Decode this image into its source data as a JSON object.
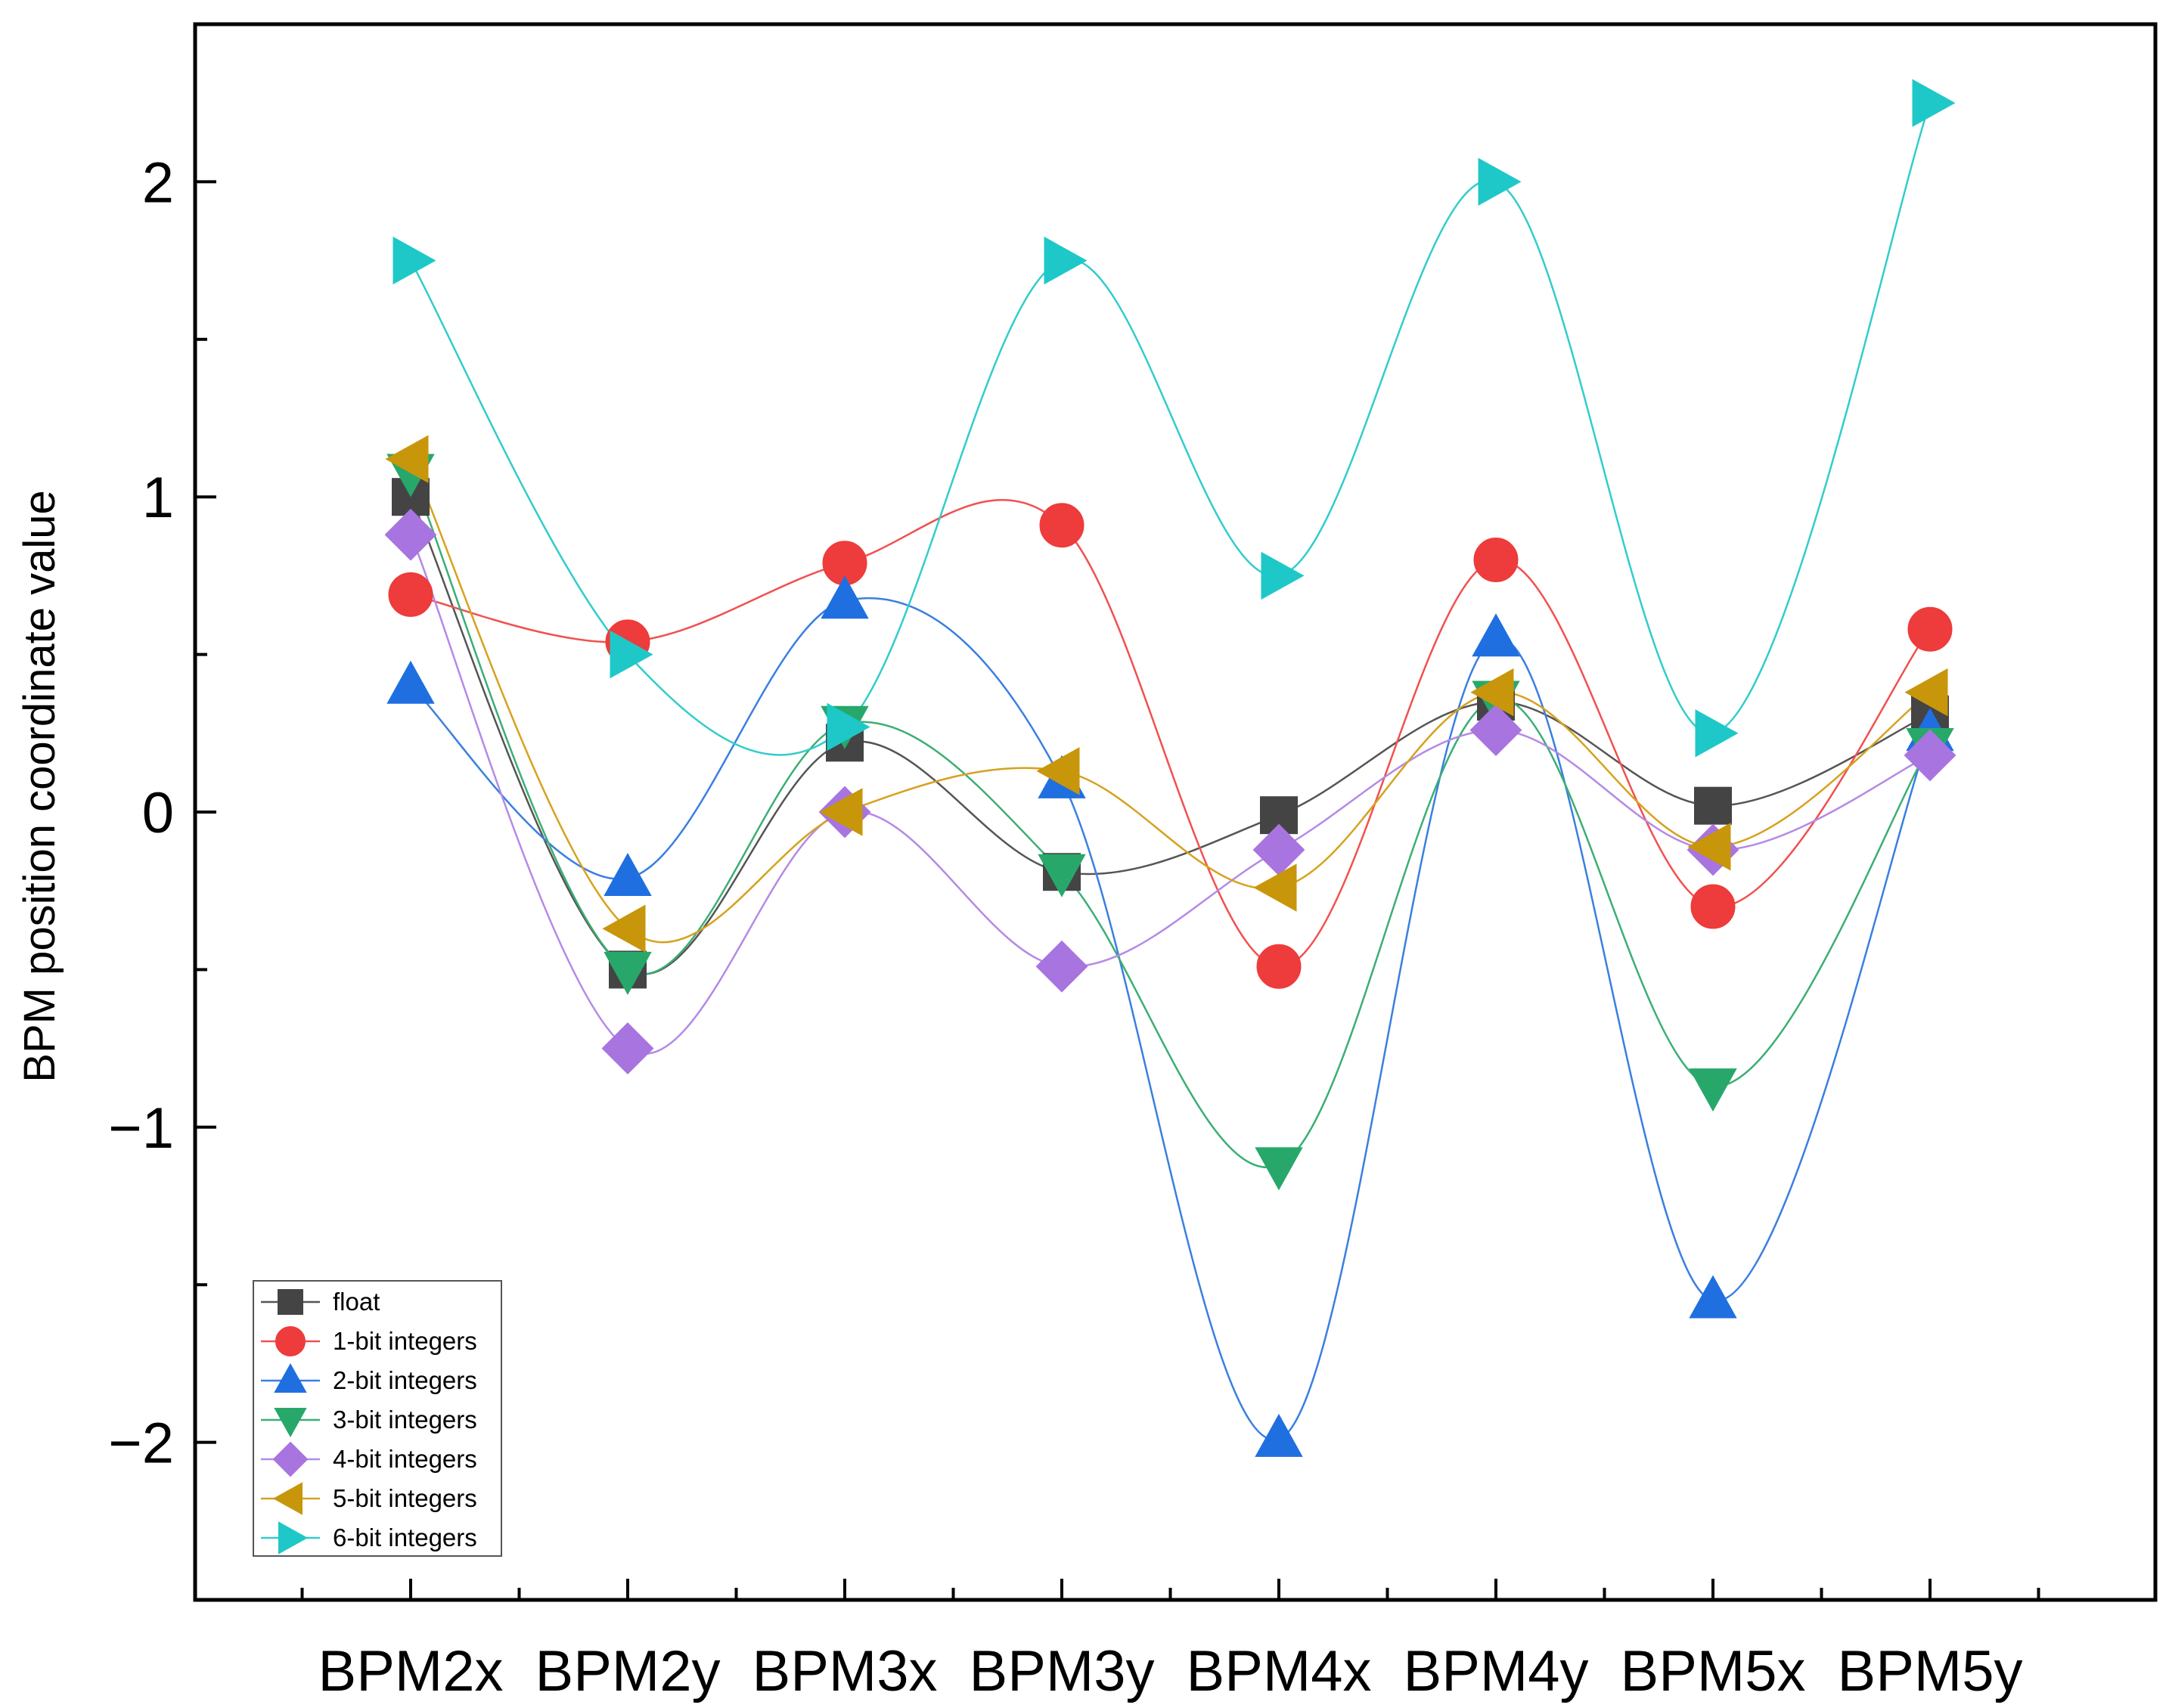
{
  "chart_data": {
    "type": "line",
    "title": "",
    "xlabel": "",
    "ylabel": "BPM position coordinate value",
    "categories": [
      "BPM2x",
      "BPM2y",
      "BPM3x",
      "BPM3y",
      "BPM4x",
      "BPM4y",
      "BPM5x",
      "BPM5y"
    ],
    "ylim": [
      -2.5,
      2.5
    ],
    "yticks": [
      -2,
      -1,
      0,
      1,
      2
    ],
    "ytick_labels": [
      "−2",
      "−1",
      "0",
      "1",
      "2"
    ],
    "smooth": true,
    "legend_position": "bottom-left",
    "series": [
      {
        "name": "float",
        "marker": "square",
        "color": "#444444",
        "line_color": "#555555",
        "values": [
          1.0,
          -0.5,
          0.22,
          -0.19,
          -0.01,
          0.35,
          0.02,
          0.31
        ]
      },
      {
        "name": "1-bit integers",
        "marker": "circle",
        "color": "#ee3b3b",
        "line_color": "#f25050",
        "values": [
          0.69,
          0.54,
          0.79,
          0.91,
          -0.49,
          0.8,
          -0.3,
          0.58
        ]
      },
      {
        "name": "2-bit integers",
        "marker": "triangle-up",
        "color": "#1f6fe0",
        "line_color": "#3a7fe0",
        "values": [
          0.4,
          -0.21,
          0.67,
          0.1,
          -1.99,
          0.55,
          -1.55,
          0.25
        ]
      },
      {
        "name": "3-bit integers",
        "marker": "triangle-down",
        "color": "#27a86a",
        "line_color": "#3cae74",
        "values": [
          1.08,
          -0.5,
          0.28,
          -0.19,
          -1.12,
          0.36,
          -0.87,
          0.21
        ]
      },
      {
        "name": "4-bit integers",
        "marker": "diamond",
        "color": "#a874e0",
        "line_color": "#b48ae6",
        "values": [
          0.88,
          -0.75,
          0.0,
          -0.49,
          -0.12,
          0.26,
          -0.12,
          0.18
        ]
      },
      {
        "name": "5-bit integers",
        "marker": "triangle-left",
        "color": "#c8960a",
        "line_color": "#d6a21e",
        "values": [
          1.12,
          -0.37,
          0.0,
          0.13,
          -0.24,
          0.38,
          -0.11,
          0.38
        ]
      },
      {
        "name": "6-bit integers",
        "marker": "triangle-right",
        "color": "#1fc8c8",
        "line_color": "#33cccc",
        "values": [
          1.75,
          0.5,
          0.27,
          1.75,
          0.75,
          2.0,
          0.25,
          2.25
        ]
      }
    ]
  }
}
